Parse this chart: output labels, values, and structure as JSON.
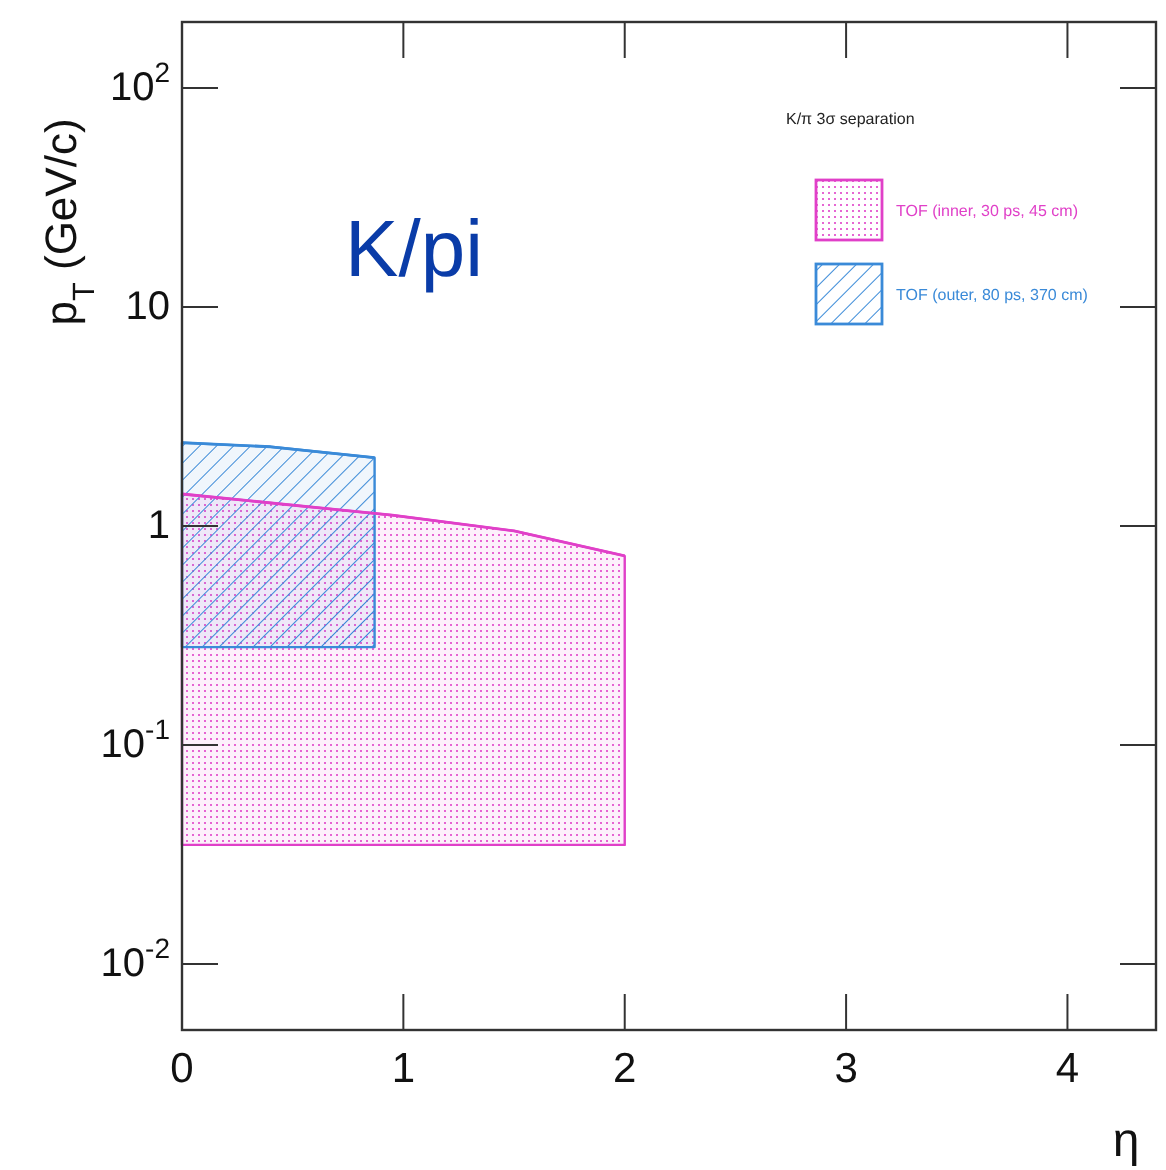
{
  "chart_data": {
    "type": "line",
    "xlabel": "η",
    "ylabel": "p$_{T}$ (GeV/c)",
    "legend_title": "K/π 3σ separation",
    "annotations": [
      "K/pi"
    ],
    "series": [
      {
        "name": "TOF (inner, 30 ps, 45 cm)",
        "color": "#e040c8",
        "x": [
          0,
          0.95,
          1.5,
          2
        ],
        "values": [
          1.4,
          1.12,
          0.95,
          0.73
        ],
        "lower": [
          0.035,
          0.035,
          0.035,
          0.035
        ],
        "upper": [
          1.4,
          1.12,
          0.95,
          0.73
        ]
      },
      {
        "name": "TOF (outer, 80 ps, 370 cm)",
        "color": "#3a8ad8",
        "x": [
          0,
          0.4,
          0.87
        ],
        "values": [
          2.4,
          2.3,
          2.05
        ],
        "lower": [
          0.28,
          0.28,
          0.28
        ],
        "upper": [
          2.4,
          2.3,
          2.05
        ]
      }
    ],
    "log": "y",
    "legend": "top right",
    "xlim": [
      0,
      4.4
    ],
    "ylim": [
      0.005,
      200
    ],
    "xticks": [
      0,
      1,
      2,
      3,
      4
    ],
    "yticks": [
      {
        "value": 0.01,
        "label": "10$^{-2}$"
      },
      {
        "value": 0.1,
        "label": "10$^{-1}$"
      },
      1,
      10,
      {
        "value": 100,
        "label": "10$^{2}$"
      }
    ]
  }
}
